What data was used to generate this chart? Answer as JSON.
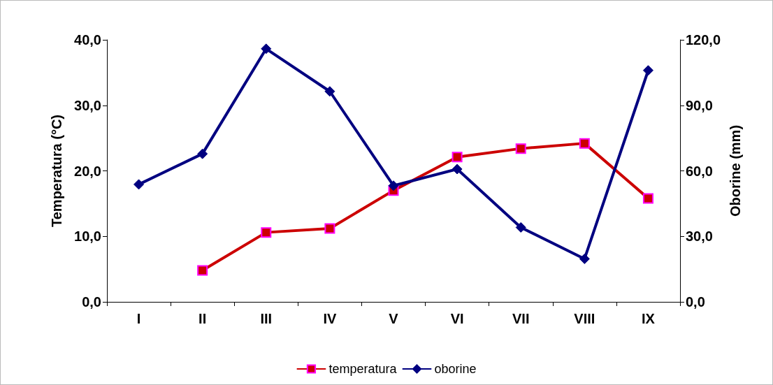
{
  "chart_data": {
    "type": "line",
    "categories": [
      "I",
      "II",
      "III",
      "IV",
      "V",
      "VI",
      "VII",
      "VIII",
      "IX"
    ],
    "ylabel": "Temperatura (°C)",
    "y2label": "Oborine (mm)",
    "ylim": [
      0,
      40
    ],
    "yticks": [
      {
        "value": 0,
        "label": "0,0"
      },
      {
        "value": 10,
        "label": "10,0"
      },
      {
        "value": 20,
        "label": "20,0"
      },
      {
        "value": 30,
        "label": "30,0"
      },
      {
        "value": 40,
        "label": "40,0"
      }
    ],
    "y2lim": [
      0,
      120
    ],
    "y2ticks": [
      {
        "value": 0,
        "label": "0,0"
      },
      {
        "value": 30,
        "label": "30,0"
      },
      {
        "value": 60,
        "label": "60,0"
      },
      {
        "value": 90,
        "label": "90,0"
      },
      {
        "value": 120,
        "label": "120,0"
      }
    ],
    "series": [
      {
        "name": "temperatura",
        "color": "#cc0000",
        "marker": "square",
        "values": [
          null,
          4.8,
          10.6,
          11.2,
          17.0,
          22.1,
          23.4,
          24.2,
          15.8
        ]
      },
      {
        "name": "oborine",
        "color": "#000080",
        "marker": "diamond",
        "axis": "y2",
        "values": [
          53.8,
          67.8,
          115.9,
          96.4,
          53.2,
          60.8,
          34.1,
          19.7,
          106.0
        ]
      }
    ],
    "legend": "bottom",
    "grid": false,
    "line_style": "solid"
  }
}
